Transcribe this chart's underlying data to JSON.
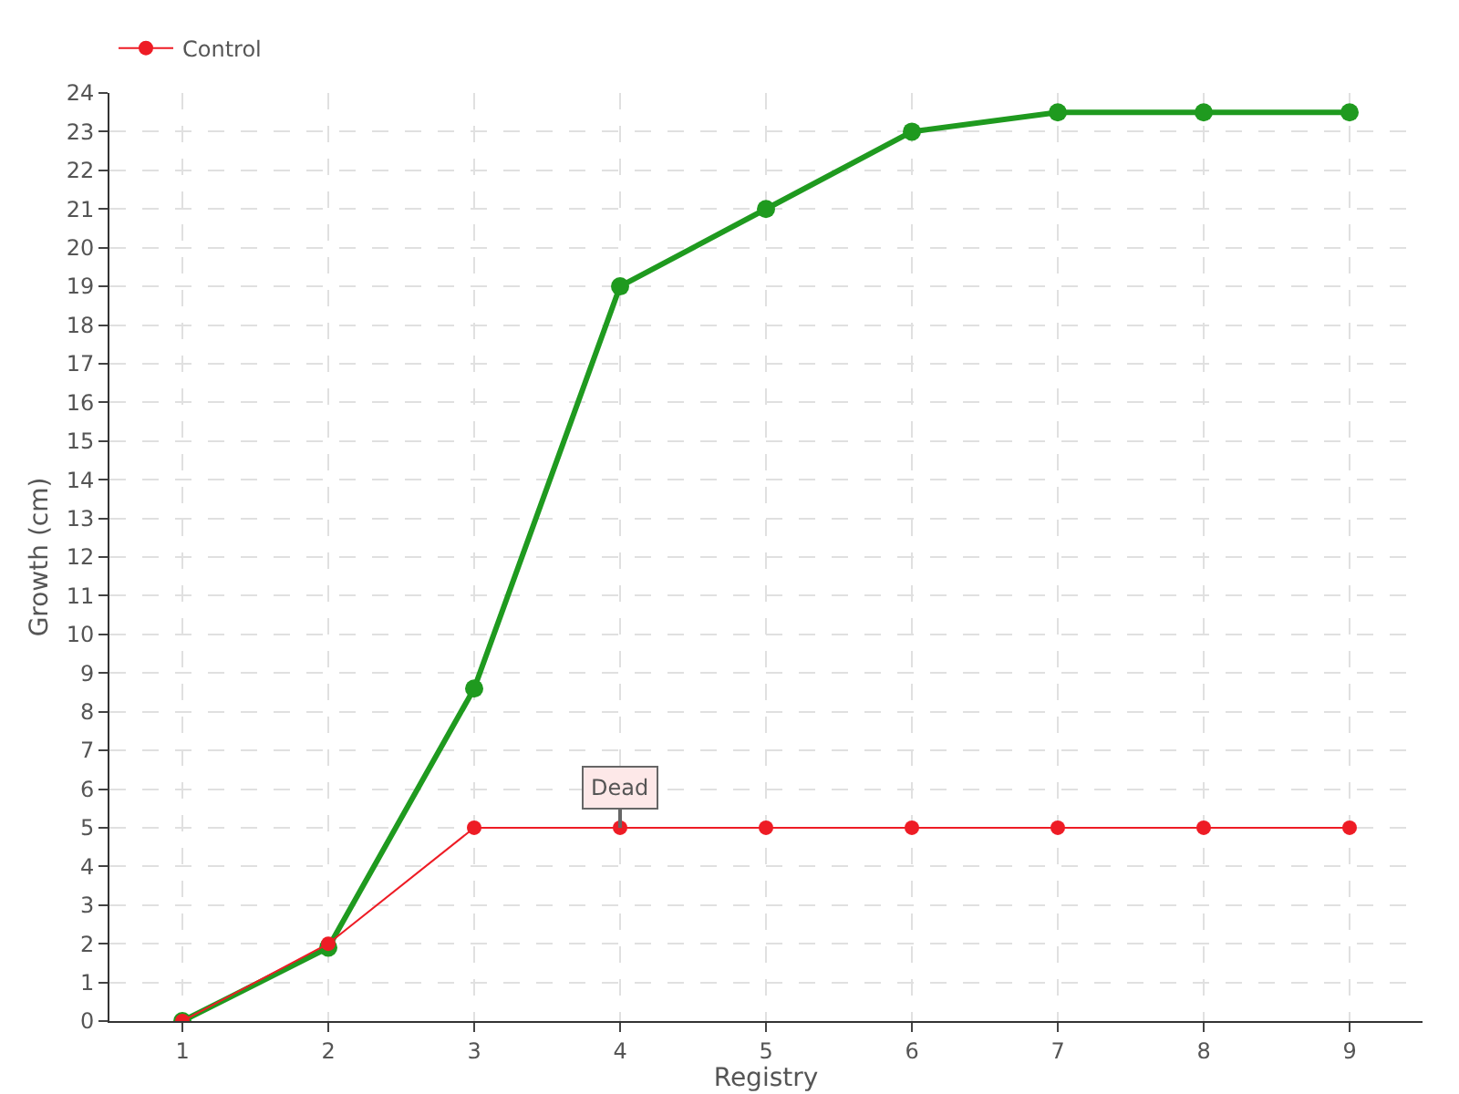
{
  "chart_data": {
    "type": "line",
    "xlabel": "Registry",
    "ylabel": "Growth (cm)",
    "x": [
      1,
      2,
      3,
      4,
      5,
      6,
      7,
      8,
      9
    ],
    "series": [
      {
        "color": "#1f9a1f",
        "values": [
          0,
          1.9,
          8.6,
          19,
          21,
          23,
          23.5,
          23.5,
          23.5
        ]
      },
      {
        "name": "Control",
        "color": "#ee1c25",
        "values": [
          0,
          2,
          5,
          5,
          5,
          5,
          5,
          5,
          5
        ]
      }
    ],
    "xlim": [
      0.5,
      9.5
    ],
    "xticks": [
      1,
      2,
      3,
      4,
      5,
      6,
      7,
      8,
      9
    ],
    "ylim": [
      0,
      24
    ],
    "yticks": [
      0,
      1,
      2,
      3,
      4,
      5,
      6,
      7,
      8,
      9,
      10,
      11,
      12,
      13,
      14,
      15,
      16,
      17,
      18,
      19,
      20,
      21,
      22,
      23,
      24
    ],
    "annotations": [
      {
        "text": "Dead",
        "x": 4,
        "y": 5
      }
    ],
    "grid": true,
    "legend": "top left",
    "marker": "circle"
  }
}
